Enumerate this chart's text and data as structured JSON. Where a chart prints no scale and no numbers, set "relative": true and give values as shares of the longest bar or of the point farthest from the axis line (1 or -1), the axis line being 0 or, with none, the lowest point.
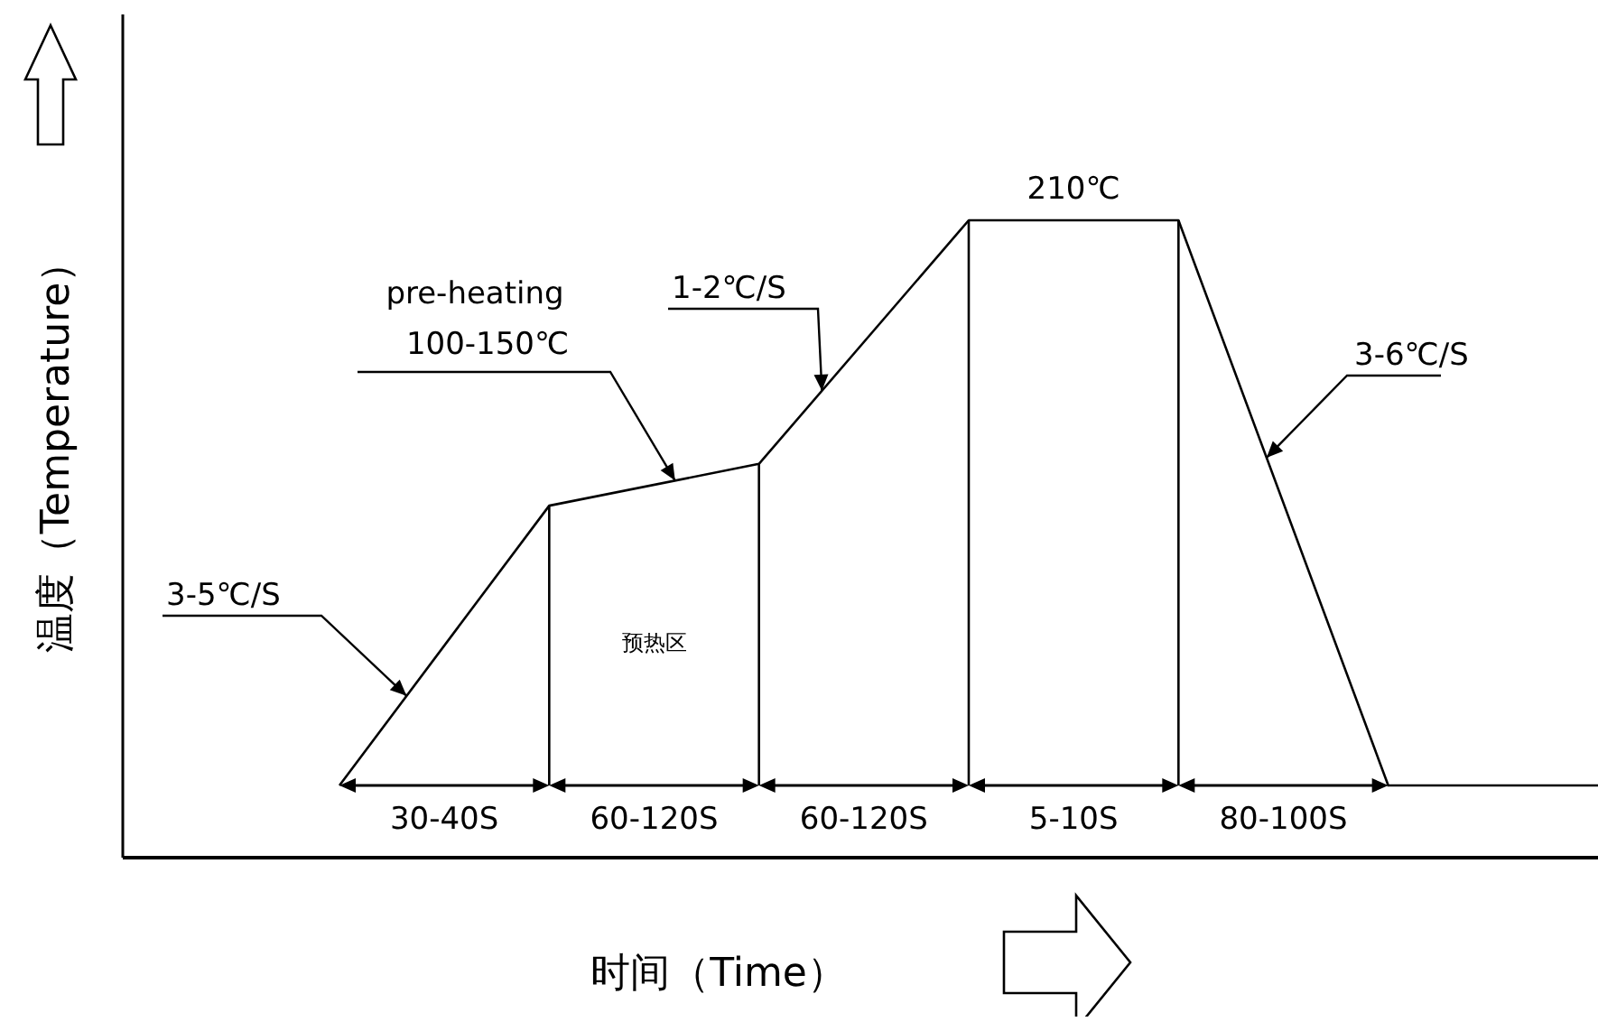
{
  "chart_data": {
    "type": "line",
    "relative": true,
    "xlabel": "时间（Time）",
    "ylabel": "温度（Temperature）",
    "categories": [
      null,
      null,
      null,
      null,
      null,
      null,
      null
    ],
    "values": [
      0,
      0.495,
      0.569,
      1,
      1,
      0,
      0
    ],
    "color": "#000000",
    "annotations": [
      "3-5℃/S",
      "pre-heating",
      "100-150℃",
      "1-2℃/S",
      "210℃",
      "3-6℃/S",
      "预热区",
      "30-40S",
      "60-120S",
      "60-120S",
      "5-10S",
      "80-100S"
    ]
  }
}
